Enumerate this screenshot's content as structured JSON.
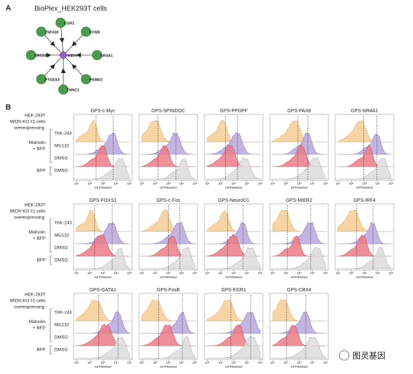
{
  "panel_a": {
    "label": "A",
    "title": "BioPlex_HEK293T cells",
    "center": "MIDN",
    "nodes": [
      "EGR1",
      "FOSB",
      "NR4A1",
      "PSMD2",
      "TNNC1",
      "PTGES3",
      "ERCC6L",
      "ZNF418"
    ]
  },
  "panel_b": {
    "label": "B",
    "header": [
      "HEK-293T",
      "MIDN KO #1 cells",
      "overexpressing:"
    ],
    "groups": [
      {
        "label": [
          "Midnolin",
          "+ BFP"
        ],
        "conditions": [
          "TAK-243",
          "MG132",
          "DMSO"
        ]
      },
      {
        "label": [
          "BFP"
        ],
        "conditions": [
          "DMSO"
        ]
      }
    ],
    "x_ticks": [
      "10¹",
      "10²",
      "10³",
      "10⁴",
      "10⁵"
    ],
    "x_label": "GFP/DsRed",
    "rows": [
      [
        "GPS-c-Myc",
        "GPS-SPINDOC",
        "GPS-PPDPF",
        "GPS-PAX8",
        "GPS-NR4A1"
      ],
      [
        "GPS-FOXS1",
        "GPS-c-Fos",
        "GPS-NeuroD1",
        "GPS-MIER2",
        "GPS-IRF4"
      ],
      [
        "GPS-GATA1",
        "GPS-FosB",
        "GPS-EGR1",
        "GPS-CBX4"
      ]
    ]
  },
  "watermark": "图灵基因"
}
